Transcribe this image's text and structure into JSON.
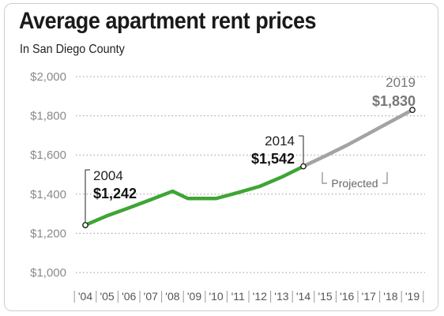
{
  "chart_data": {
    "type": "line",
    "title": "Average apartment rent prices",
    "subtitle": "In San Diego County",
    "xlabel": "",
    "ylabel": "",
    "ylim": [
      1000,
      2000
    ],
    "y_ticks": [
      "$2,000",
      "$1,800",
      "$1,600",
      "$1,400",
      "$1,200",
      "$1,000"
    ],
    "y_tick_values": [
      2000,
      1800,
      1600,
      1400,
      1200,
      1000
    ],
    "x_ticks": [
      "'04",
      "'05",
      "'06",
      "'07",
      "'08",
      "'09",
      "'10",
      "'11",
      "'12",
      "'13",
      "'14",
      "'15",
      "'16",
      "'17",
      "'18",
      "'19"
    ],
    "x_tick_values": [
      2004,
      2005,
      2006,
      2007,
      2008,
      2009,
      2010,
      2011,
      2012,
      2013,
      2014,
      2015,
      2016,
      2017,
      2018,
      2019
    ],
    "grid": "horizontal dotted",
    "series": [
      {
        "color": "#3fa535",
        "x": [
          2004,
          2005,
          2006,
          2007,
          2008,
          2008.7,
          2010,
          2011,
          2012,
          2013,
          2014
        ],
        "values": [
          1242,
          1290,
          1330,
          1372,
          1415,
          1378,
          1378,
          1408,
          1440,
          1487,
          1542
        ]
      },
      {
        "color": "#a3a3a3",
        "x": [
          2014,
          2015,
          2016,
          2017,
          2018,
          2019
        ],
        "values": [
          1542,
          1595,
          1650,
          1710,
          1770,
          1830
        ]
      }
    ],
    "annotations": [
      {
        "year": "2004",
        "value": "$1,242"
      },
      {
        "year": "2014",
        "value": "$1,542"
      },
      {
        "year": "2019",
        "value": "$1,830"
      }
    ],
    "projected_label": "Projected"
  },
  "colors": {
    "actual": "#3fa535",
    "projected": "#a3a3a3",
    "grid": "#9a9a9a"
  }
}
